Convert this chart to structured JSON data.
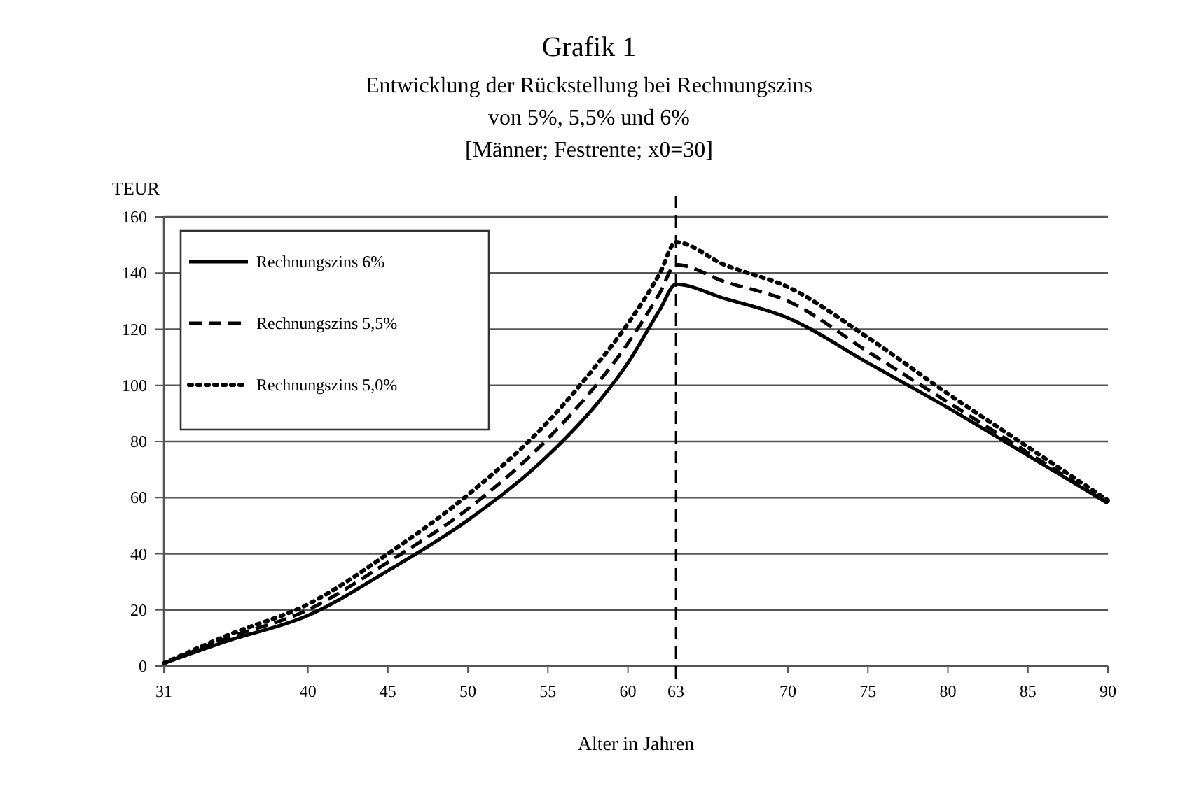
{
  "chart_data": {
    "type": "line",
    "title": "Grafik 1",
    "subtitle": "Entwicklung der Rückstellung bei Rechnungszins\nvon 5%, 5,5% und 6%\n[Männer; Festrente; x0=30]",
    "xlabel": "Alter in Jahren",
    "ylabel": "TEUR",
    "x": [
      31,
      35,
      40,
      45,
      50,
      55,
      58,
      60,
      62,
      63,
      66,
      70,
      75,
      80,
      85,
      90
    ],
    "series": [
      {
        "name": "Rechnungszins 6%",
        "color": "#000000",
        "line_style": "solid",
        "values": [
          1,
          9,
          18,
          34,
          52,
          75,
          93,
          108,
          127,
          136,
          131,
          124,
          108,
          92,
          75,
          58
        ]
      },
      {
        "name": "Rechnungszins 5,5%",
        "color": "#000000",
        "line_style": "dashed",
        "values": [
          1,
          10,
          20,
          37,
          56,
          81,
          100,
          115,
          133,
          143,
          137,
          130,
          112,
          94,
          76,
          58
        ]
      },
      {
        "name": "Rechnungszins 5,0%",
        "color": "#000000",
        "line_style": "dotted",
        "values": [
          1,
          11,
          22,
          40,
          61,
          87,
          107,
          122,
          140,
          151,
          143,
          135,
          117,
          97,
          78,
          59
        ]
      }
    ],
    "xlim": [
      31,
      90
    ],
    "xticks": [
      31,
      40,
      45,
      50,
      55,
      60,
      63,
      70,
      75,
      80,
      85,
      90
    ],
    "ylim": [
      0,
      160
    ],
    "yticks": [
      0,
      20,
      40,
      60,
      80,
      100,
      120,
      140,
      160
    ],
    "grid": "y",
    "legend": "top left",
    "marker": "none",
    "ref_lines": [
      {
        "axis": "x",
        "value": 63,
        "line_style": "dashed",
        "color": "#000000"
      }
    ]
  }
}
